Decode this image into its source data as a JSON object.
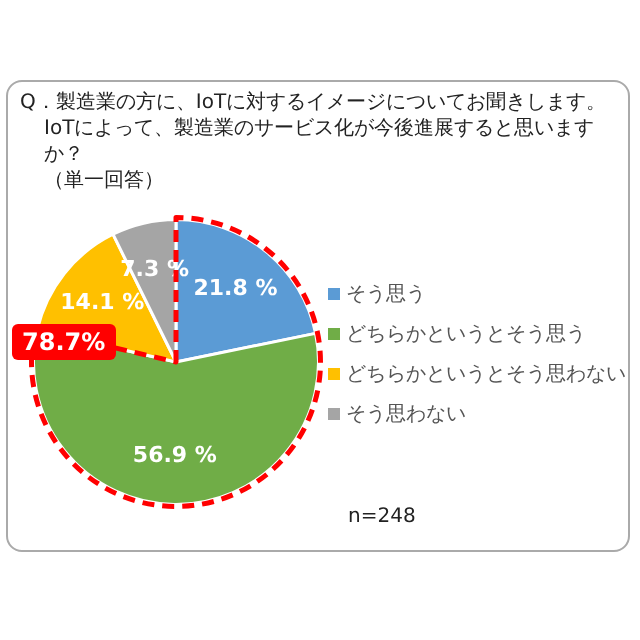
{
  "chart_data": {
    "type": "pie",
    "title": "Q．製造業の方に、IoTに対するイメージについてお聞きします。",
    "subtitle": "IoTによって、製造業のサービス化が今後進展すると思いますか？",
    "categories": [
      "そう思う",
      "どちらかというとそう思う",
      "どちらかというとそう思わない",
      "そう思わない"
    ],
    "values": [
      21.8,
      56.9,
      14.1,
      7.3
    ],
    "colors": [
      "#5b9bd5",
      "#70ad47",
      "#ffc000",
      "#a5a5a5"
    ],
    "value_labels": [
      "21.8 %",
      "56.9 %",
      "14.1 %",
      "7.3 %"
    ],
    "legend": "right",
    "annotations": [
      "（単一回答）",
      "78.7%",
      "n=248"
    ]
  }
}
